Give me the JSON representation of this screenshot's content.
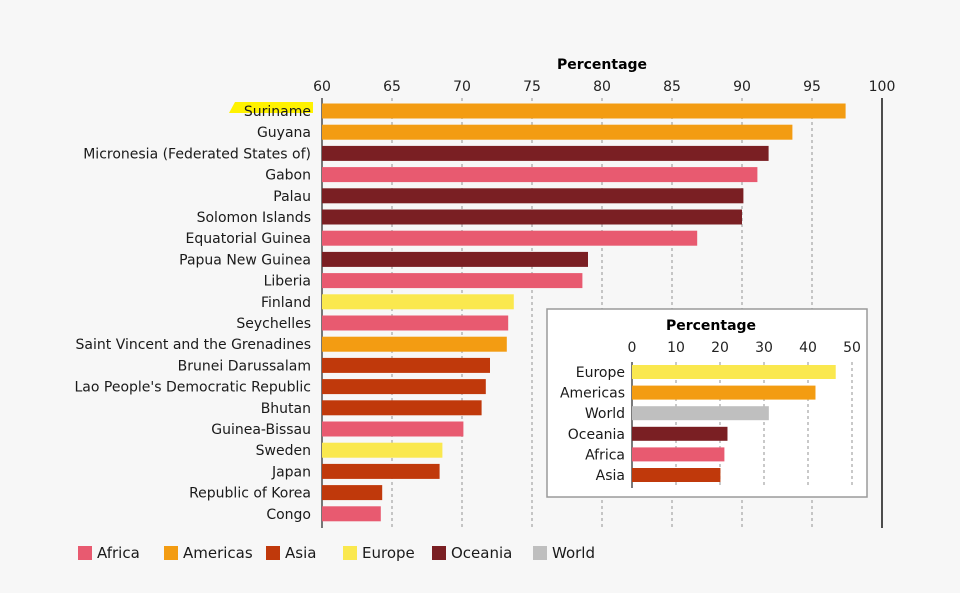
{
  "chart_data": [
    {
      "type": "bar",
      "orientation": "horizontal",
      "title": "Percentage",
      "xlim": [
        60,
        100
      ],
      "xticks": [
        60,
        65,
        70,
        75,
        80,
        85,
        90,
        95,
        100
      ],
      "grid": "dashed vertical",
      "categories": [
        "Suriname",
        "Guyana",
        "Micronesia (Federated States of)",
        "Gabon",
        "Palau",
        "Solomon Islands",
        "Equatorial Guinea",
        "Papua New Guinea",
        "Liberia",
        "Finland",
        "Seychelles",
        "Saint Vincent and the Grenadines",
        "Brunei Darussalam",
        "Lao People's Democratic Republic",
        "Bhutan",
        "Guinea-Bissau",
        "Sweden",
        "Japan",
        "Republic of Korea",
        "Congo"
      ],
      "values": [
        97.4,
        93.6,
        91.9,
        91.1,
        90.1,
        90.0,
        86.8,
        79.0,
        78.6,
        73.7,
        73.3,
        73.2,
        72.0,
        71.7,
        71.4,
        70.1,
        68.6,
        68.4,
        64.3,
        64.2
      ],
      "groups": [
        "Americas",
        "Americas",
        "Oceania",
        "Africa",
        "Oceania",
        "Oceania",
        "Africa",
        "Oceania",
        "Africa",
        "Europe",
        "Africa",
        "Americas",
        "Asia",
        "Asia",
        "Asia",
        "Africa",
        "Europe",
        "Asia",
        "Asia",
        "Africa"
      ],
      "highlighted": "Suriname"
    },
    {
      "type": "bar",
      "orientation": "horizontal",
      "title": "Percentage",
      "xlim": [
        0,
        50
      ],
      "xticks": [
        0,
        10,
        20,
        30,
        40,
        50
      ],
      "grid": "dashed vertical",
      "categories": [
        "Europe",
        "Americas",
        "World",
        "Oceania",
        "Africa",
        "Asia"
      ],
      "values": [
        46.3,
        41.7,
        31.1,
        21.7,
        21.0,
        20.1
      ],
      "groups": [
        "Europe",
        "Americas",
        "World",
        "Oceania",
        "Africa",
        "Asia"
      ]
    }
  ],
  "legend": {
    "placement": "bottom",
    "items": [
      {
        "label": "Africa",
        "color": "#e85a70"
      },
      {
        "label": "Americas",
        "color": "#f39c12"
      },
      {
        "label": "Asia",
        "color": "#c0390b"
      },
      {
        "label": "Europe",
        "color": "#fae84e"
      },
      {
        "label": "Oceania",
        "color": "#7a1f23"
      },
      {
        "label": "World",
        "color": "#bfbfbf"
      }
    ]
  },
  "colors": {
    "Africa": "#e85a70",
    "Americas": "#f39c12",
    "Asia": "#c0390b",
    "Europe": "#fae84e",
    "Oceania": "#7a1f23",
    "World": "#bfbfbf",
    "highlight": "#fff200"
  }
}
